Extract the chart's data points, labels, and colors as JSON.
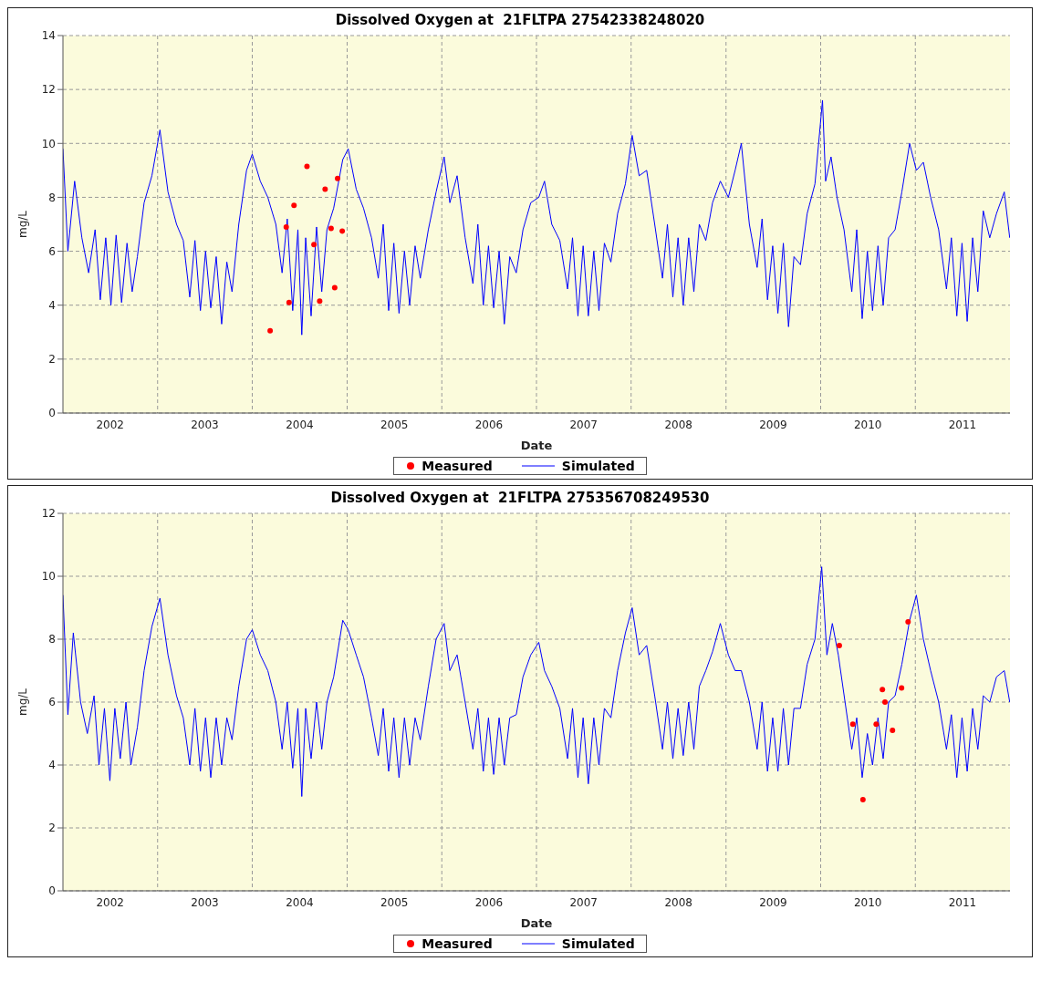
{
  "chart_data": [
    {
      "type": "line",
      "title": "Dissolved Oxygen at  21FLTPA 27542338248020",
      "xlabel": "Date",
      "ylabel": "mg/L",
      "xlim": [
        "2002-01-01",
        "2012-01-01"
      ],
      "xticks": [
        {
          "value": "2002-07-02",
          "label": "2002"
        },
        {
          "value": "2003-01-01",
          "label": null
        },
        {
          "value": "2003-07-02",
          "label": "2003"
        },
        {
          "value": "2004-01-01",
          "label": null
        },
        {
          "value": "2004-07-02",
          "label": "2004"
        },
        {
          "value": "2005-01-01",
          "label": null
        },
        {
          "value": "2005-07-02",
          "label": "2005"
        },
        {
          "value": "2006-01-01",
          "label": null
        },
        {
          "value": "2006-07-02",
          "label": "2006"
        },
        {
          "value": "2007-01-01",
          "label": null
        },
        {
          "value": "2007-07-02",
          "label": "2007"
        },
        {
          "value": "2008-01-01",
          "label": null
        },
        {
          "value": "2008-07-02",
          "label": "2008"
        },
        {
          "value": "2009-01-01",
          "label": null
        },
        {
          "value": "2009-07-02",
          "label": "2009"
        },
        {
          "value": "2010-01-01",
          "label": null
        },
        {
          "value": "2010-07-02",
          "label": "2010"
        },
        {
          "value": "2011-01-01",
          "label": null
        },
        {
          "value": "2011-07-02",
          "label": "2011"
        }
      ],
      "ylim": [
        0,
        14
      ],
      "yticks": [
        0,
        2,
        4,
        6,
        8,
        10,
        12,
        14
      ],
      "grid": true,
      "legend": "bottom",
      "series": [
        {
          "name": "Measured",
          "type": "scatter",
          "color": "#ff0000",
          "marker": "circle",
          "x": [
            "2004-03-10",
            "2004-05-11",
            "2004-05-22",
            "2004-06-10",
            "2004-07-30",
            "2004-08-26",
            "2004-09-17",
            "2004-10-08",
            "2004-10-31",
            "2004-11-14",
            "2004-11-25",
            "2004-12-13"
          ],
          "values": [
            3.05,
            6.9,
            4.1,
            7.7,
            9.15,
            6.25,
            4.15,
            8.3,
            6.85,
            4.65,
            8.7,
            6.75
          ]
        },
        {
          "name": "Simulated",
          "color": "#0000ff",
          "marker": "none",
          "line_style": "solid",
          "x": [
            "2002-01-01",
            "2002-01-20",
            "2002-02-15",
            "2002-03-15",
            "2002-04-10",
            "2002-05-05",
            "2002-05-25",
            "2002-06-15",
            "2002-07-05",
            "2002-07-25",
            "2002-08-15",
            "2002-09-05",
            "2002-09-25",
            "2002-10-15",
            "2002-11-10",
            "2002-12-10",
            "2003-01-10",
            "2003-02-10",
            "2003-03-15",
            "2003-04-10",
            "2003-05-05",
            "2003-05-25",
            "2003-06-15",
            "2003-07-05",
            "2003-07-25",
            "2003-08-15",
            "2003-09-05",
            "2003-09-25",
            "2003-10-15",
            "2003-11-10",
            "2003-12-10",
            "2004-01-01",
            "2004-02-01",
            "2004-03-01",
            "2004-04-01",
            "2004-04-25",
            "2004-05-15",
            "2004-06-05",
            "2004-06-25",
            "2004-07-10",
            "2004-07-25",
            "2004-08-15",
            "2004-09-05",
            "2004-09-25",
            "2004-10-15",
            "2004-11-10",
            "2004-12-15",
            "2005-01-05",
            "2005-02-05",
            "2005-03-05",
            "2005-04-05",
            "2005-05-01",
            "2005-05-20",
            "2005-06-10",
            "2005-06-30",
            "2005-07-20",
            "2005-08-10",
            "2005-08-30",
            "2005-09-20",
            "2005-10-10",
            "2005-11-10",
            "2005-12-10",
            "2006-01-10",
            "2006-02-01",
            "2006-03-01",
            "2006-04-01",
            "2006-05-01",
            "2006-05-20",
            "2006-06-10",
            "2006-06-30",
            "2006-07-20",
            "2006-08-10",
            "2006-08-30",
            "2006-09-20",
            "2006-10-15",
            "2006-11-10",
            "2006-12-10",
            "2007-01-10",
            "2007-02-01",
            "2007-03-01",
            "2007-04-01",
            "2007-05-01",
            "2007-05-20",
            "2007-06-10",
            "2007-06-30",
            "2007-07-20",
            "2007-08-10",
            "2007-08-30",
            "2007-09-20",
            "2007-10-15",
            "2007-11-10",
            "2007-12-10",
            "2008-01-05",
            "2008-02-01",
            "2008-03-01",
            "2008-04-01",
            "2008-05-01",
            "2008-05-20",
            "2008-06-10",
            "2008-06-30",
            "2008-07-20",
            "2008-08-10",
            "2008-08-30",
            "2008-09-20",
            "2008-10-15",
            "2008-11-10",
            "2008-12-10",
            "2009-01-10",
            "2009-02-05",
            "2009-03-01",
            "2009-04-01",
            "2009-05-01",
            "2009-05-20",
            "2009-06-10",
            "2009-06-30",
            "2009-07-20",
            "2009-08-10",
            "2009-08-30",
            "2009-09-20",
            "2009-10-15",
            "2009-11-10",
            "2009-12-10",
            "2010-01-08",
            "2010-01-20",
            "2010-02-10",
            "2010-03-05",
            "2010-04-01",
            "2010-05-01",
            "2010-05-20",
            "2010-06-10",
            "2010-06-30",
            "2010-07-20",
            "2010-08-10",
            "2010-08-30",
            "2010-09-20",
            "2010-10-15",
            "2010-11-10",
            "2010-12-10",
            "2011-01-05",
            "2011-02-01",
            "2011-03-01",
            "2011-04-01",
            "2011-05-01",
            "2011-05-20",
            "2011-06-10",
            "2011-06-30",
            "2011-07-20",
            "2011-08-10",
            "2011-08-30",
            "2011-09-20",
            "2011-10-15",
            "2011-11-10",
            "2011-12-10",
            "2011-12-31"
          ],
          "values": [
            9.8,
            6.0,
            8.6,
            6.5,
            5.2,
            6.8,
            4.2,
            6.5,
            4.0,
            6.6,
            4.1,
            6.3,
            4.5,
            5.8,
            7.8,
            8.8,
            10.5,
            8.2,
            7.0,
            6.4,
            4.3,
            6.4,
            3.8,
            6.0,
            3.9,
            5.8,
            3.3,
            5.6,
            4.5,
            7.0,
            9.0,
            9.6,
            8.6,
            8.0,
            7.0,
            5.2,
            7.2,
            3.8,
            6.8,
            2.9,
            6.5,
            3.6,
            6.9,
            4.5,
            6.8,
            7.6,
            9.4,
            9.8,
            8.3,
            7.6,
            6.5,
            5.0,
            7.0,
            3.8,
            6.3,
            3.7,
            6.0,
            4.0,
            6.2,
            5.0,
            6.8,
            8.2,
            9.5,
            7.8,
            8.8,
            6.5,
            4.8,
            7.0,
            4.0,
            6.2,
            3.9,
            6.0,
            3.3,
            5.8,
            5.2,
            6.8,
            7.8,
            8.0,
            8.6,
            7.0,
            6.4,
            4.6,
            6.5,
            3.6,
            6.2,
            3.6,
            6.0,
            3.8,
            6.3,
            5.6,
            7.4,
            8.5,
            10.3,
            8.8,
            9.0,
            7.0,
            5.0,
            7.0,
            4.3,
            6.5,
            4.0,
            6.5,
            4.5,
            7.0,
            6.4,
            7.8,
            8.6,
            8.0,
            9.0,
            10.0,
            7.0,
            5.4,
            7.2,
            4.2,
            6.2,
            3.7,
            6.3,
            3.2,
            5.8,
            5.5,
            7.4,
            8.5,
            11.6,
            8.6,
            9.5,
            8.0,
            6.8,
            4.5,
            6.8,
            3.5,
            6.0,
            3.8,
            6.2,
            4.0,
            6.5,
            6.8,
            8.2,
            10.0,
            9.0,
            9.3,
            8.0,
            6.8,
            4.6,
            6.5,
            3.6,
            6.3,
            3.4,
            6.5,
            4.5,
            7.5,
            6.5,
            7.4,
            8.2,
            6.5
          ]
        }
      ]
    },
    {
      "type": "line",
      "title": "Dissolved Oxygen at  21FLTPA 275356708249530",
      "xlabel": "Date",
      "ylabel": "mg/L",
      "xlim": [
        "2002-01-01",
        "2012-01-01"
      ],
      "xticks": [
        {
          "value": "2002-07-02",
          "label": "2002"
        },
        {
          "value": "2003-01-01",
          "label": null
        },
        {
          "value": "2003-07-02",
          "label": "2003"
        },
        {
          "value": "2004-01-01",
          "label": null
        },
        {
          "value": "2004-07-02",
          "label": "2004"
        },
        {
          "value": "2005-01-01",
          "label": null
        },
        {
          "value": "2005-07-02",
          "label": "2005"
        },
        {
          "value": "2006-01-01",
          "label": null
        },
        {
          "value": "2006-07-02",
          "label": "2006"
        },
        {
          "value": "2007-01-01",
          "label": null
        },
        {
          "value": "2007-07-02",
          "label": "2007"
        },
        {
          "value": "2008-01-01",
          "label": null
        },
        {
          "value": "2008-07-02",
          "label": "2008"
        },
        {
          "value": "2009-01-01",
          "label": null
        },
        {
          "value": "2009-07-02",
          "label": "2009"
        },
        {
          "value": "2010-01-01",
          "label": null
        },
        {
          "value": "2010-07-02",
          "label": "2010"
        },
        {
          "value": "2011-01-01",
          "label": null
        },
        {
          "value": "2011-07-02",
          "label": "2011"
        }
      ],
      "ylim": [
        0,
        12
      ],
      "yticks": [
        0,
        2,
        4,
        6,
        8,
        10,
        12
      ],
      "grid": true,
      "legend": "bottom",
      "series": [
        {
          "name": "Measured",
          "type": "scatter",
          "color": "#ff0000",
          "marker": "circle",
          "x": [
            "2010-03-14",
            "2010-05-05",
            "2010-06-13",
            "2010-08-03",
            "2010-08-27",
            "2010-09-06",
            "2010-10-05",
            "2010-11-09",
            "2010-12-04"
          ],
          "values": [
            7.8,
            5.3,
            2.9,
            5.3,
            6.4,
            6.0,
            5.1,
            6.45,
            8.55
          ]
        },
        {
          "name": "Simulated",
          "color": "#0000ff",
          "marker": "none",
          "line_style": "solid",
          "x": [
            "2002-01-01",
            "2002-01-20",
            "2002-02-10",
            "2002-03-10",
            "2002-04-05",
            "2002-05-01",
            "2002-05-20",
            "2002-06-10",
            "2002-07-01",
            "2002-07-20",
            "2002-08-10",
            "2002-09-01",
            "2002-09-20",
            "2002-10-15",
            "2002-11-10",
            "2002-12-10",
            "2003-01-10",
            "2003-02-10",
            "2003-03-15",
            "2003-04-10",
            "2003-05-05",
            "2003-05-25",
            "2003-06-15",
            "2003-07-05",
            "2003-07-25",
            "2003-08-15",
            "2003-09-05",
            "2003-09-25",
            "2003-10-15",
            "2003-11-10",
            "2003-12-10",
            "2004-01-01",
            "2004-02-01",
            "2004-03-01",
            "2004-04-01",
            "2004-04-25",
            "2004-05-15",
            "2004-06-05",
            "2004-06-25",
            "2004-07-10",
            "2004-07-25",
            "2004-08-15",
            "2004-09-05",
            "2004-09-25",
            "2004-10-15",
            "2004-11-10",
            "2004-12-15",
            "2005-01-05",
            "2005-02-05",
            "2005-03-05",
            "2005-04-05",
            "2005-05-01",
            "2005-05-20",
            "2005-06-10",
            "2005-06-30",
            "2005-07-20",
            "2005-08-10",
            "2005-08-30",
            "2005-09-20",
            "2005-10-10",
            "2005-11-10",
            "2005-12-10",
            "2006-01-10",
            "2006-02-01",
            "2006-03-01",
            "2006-04-01",
            "2006-05-01",
            "2006-05-20",
            "2006-06-10",
            "2006-06-30",
            "2006-07-20",
            "2006-08-10",
            "2006-08-30",
            "2006-09-20",
            "2006-10-15",
            "2006-11-10",
            "2006-12-10",
            "2007-01-10",
            "2007-02-01",
            "2007-03-01",
            "2007-04-01",
            "2007-05-01",
            "2007-05-20",
            "2007-06-10",
            "2007-06-30",
            "2007-07-20",
            "2007-08-10",
            "2007-08-30",
            "2007-09-20",
            "2007-10-15",
            "2007-11-10",
            "2007-12-10",
            "2008-01-05",
            "2008-02-01",
            "2008-03-01",
            "2008-04-01",
            "2008-05-01",
            "2008-05-20",
            "2008-06-10",
            "2008-06-30",
            "2008-07-20",
            "2008-08-10",
            "2008-08-30",
            "2008-09-20",
            "2008-10-15",
            "2008-11-10",
            "2008-12-10",
            "2009-01-10",
            "2009-02-05",
            "2009-03-01",
            "2009-04-01",
            "2009-05-01",
            "2009-05-20",
            "2009-06-10",
            "2009-06-30",
            "2009-07-20",
            "2009-08-10",
            "2009-08-30",
            "2009-09-20",
            "2009-10-15",
            "2009-11-10",
            "2009-12-10",
            "2010-01-05",
            "2010-01-25",
            "2010-02-15",
            "2010-03-10",
            "2010-04-05",
            "2010-05-01",
            "2010-05-20",
            "2010-06-10",
            "2010-06-30",
            "2010-07-20",
            "2010-08-10",
            "2010-08-30",
            "2010-09-20",
            "2010-10-15",
            "2010-11-10",
            "2010-12-10",
            "2011-01-05",
            "2011-02-01",
            "2011-03-01",
            "2011-04-01",
            "2011-05-01",
            "2011-05-20",
            "2011-06-10",
            "2011-06-30",
            "2011-07-20",
            "2011-08-10",
            "2011-08-30",
            "2011-09-20",
            "2011-10-15",
            "2011-11-10",
            "2011-12-10",
            "2011-12-31"
          ],
          "values": [
            9.4,
            5.6,
            8.2,
            6.0,
            5.0,
            6.2,
            4.0,
            5.8,
            3.5,
            5.8,
            4.2,
            6.0,
            4.0,
            5.2,
            7.0,
            8.4,
            9.3,
            7.5,
            6.2,
            5.5,
            4.0,
            5.8,
            3.8,
            5.5,
            3.6,
            5.5,
            4.0,
            5.5,
            4.8,
            6.5,
            8.0,
            8.3,
            7.5,
            7.0,
            6.0,
            4.5,
            6.0,
            3.9,
            5.8,
            3.0,
            5.8,
            4.2,
            6.0,
            4.5,
            6.0,
            6.8,
            8.6,
            8.3,
            7.5,
            6.8,
            5.5,
            4.3,
            5.8,
            3.8,
            5.5,
            3.6,
            5.5,
            4.0,
            5.5,
            4.8,
            6.5,
            8.0,
            8.5,
            7.0,
            7.5,
            6.0,
            4.5,
            5.8,
            3.8,
            5.5,
            3.7,
            5.5,
            4.0,
            5.5,
            5.6,
            6.8,
            7.5,
            7.9,
            7.0,
            6.5,
            5.8,
            4.2,
            5.8,
            3.6,
            5.5,
            3.4,
            5.5,
            4.0,
            5.8,
            5.5,
            7.0,
            8.2,
            9.0,
            7.5,
            7.8,
            6.2,
            4.5,
            6.0,
            4.2,
            5.8,
            4.3,
            6.0,
            4.5,
            6.5,
            7.0,
            7.6,
            8.5,
            7.5,
            7.0,
            7.0,
            6.0,
            4.5,
            6.0,
            3.8,
            5.5,
            3.8,
            5.8,
            4.0,
            5.8,
            5.8,
            7.2,
            8.0,
            10.3,
            7.5,
            8.5,
            7.5,
            6.0,
            4.5,
            5.5,
            3.6,
            5.0,
            4.0,
            5.5,
            4.2,
            6.0,
            6.2,
            7.2,
            8.6,
            9.4,
            8.0,
            7.0,
            6.0,
            4.5,
            5.6,
            3.6,
            5.5,
            3.8,
            5.8,
            4.5,
            6.2,
            6.0,
            6.8,
            7.0,
            6.0
          ]
        }
      ]
    }
  ]
}
